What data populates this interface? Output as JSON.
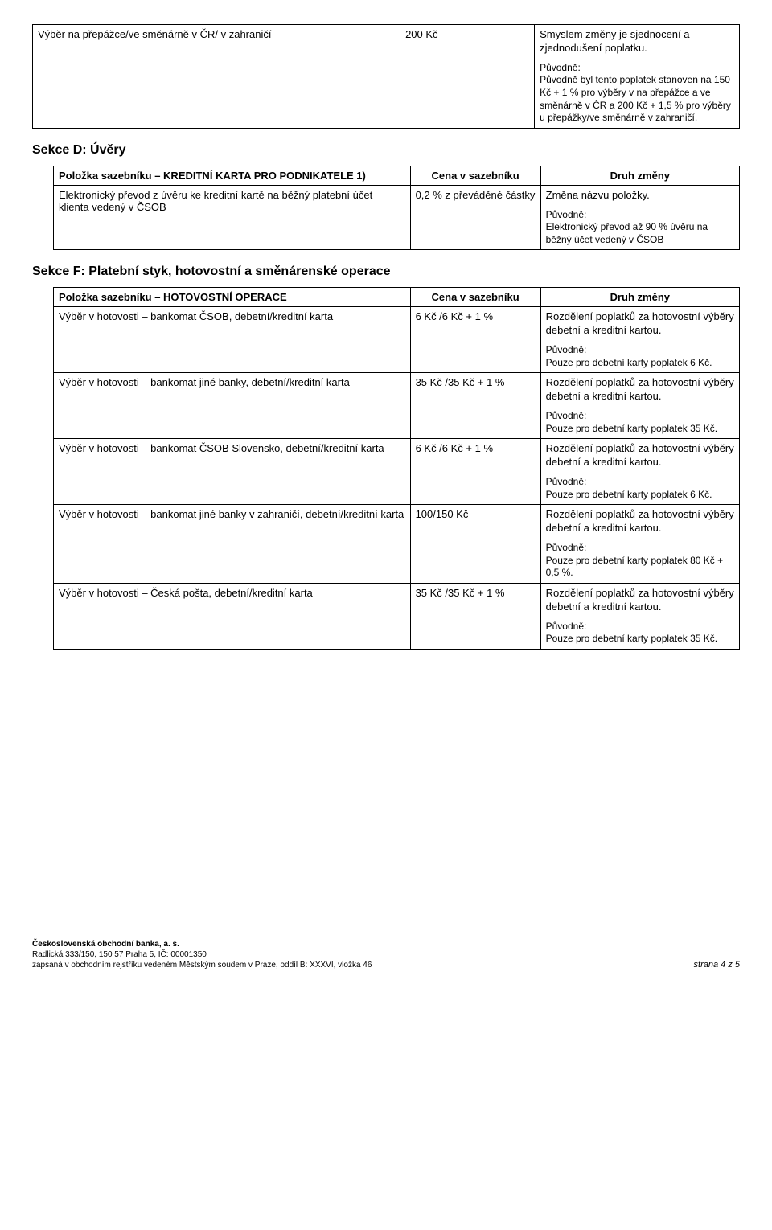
{
  "topTable": {
    "row": {
      "col1": "Výběr na přepážce/ve směnárně v ČR/ v zahraničí",
      "col2": "200 Kč",
      "lead": "Smyslem změny je sjednocení a zjednodušení poplatku.",
      "puvLabel": "Původně:",
      "puvText": "Původně byl tento poplatek stanoven na 150 Kč + 1 % pro výběry v na přepážce a ve směnárně v ČR a 200 Kč + 1,5 % pro výběry u přepážky/ve směnárně v zahraničí."
    }
  },
  "sectionD": {
    "heading": "Sekce D: Úvěry",
    "headerCol1": "Položka sazebníku – KREDITNÍ KARTA PRO PODNIKATELE 1)",
    "headerCol2": "Cena v sazebníku",
    "headerCol3": "Druh změny",
    "row": {
      "col1": "Elektronický převod z úvěru ke kreditní kartě na běžný platební účet klienta vedený v ČSOB",
      "col2": "0,2 % z převáděné částky",
      "lead": "Změna názvu položky.",
      "puvLabel": "Původně:",
      "puvText": "Elektronický převod až 90 % úvěru na běžný účet vedený v ČSOB"
    }
  },
  "sectionF": {
    "heading": "Sekce F: Platební styk, hotovostní a směnárenské operace",
    "headerCol1": "Položka sazebníku – HOTOVOSTNÍ OPERACE",
    "headerCol2": "Cena v sazebníku",
    "headerCol3": "Druh změny",
    "rows": [
      {
        "col1": "Výběr v hotovosti – bankomat ČSOB, debetní/kreditní karta",
        "col2": "6 Kč /6 Kč + 1 %",
        "lead": "Rozdělení poplatků za hotovostní výběry debetní a kreditní kartou.",
        "puvLabel": "Původně:",
        "puvText": "Pouze pro debetní karty poplatek 6 Kč."
      },
      {
        "col1": "Výběr v hotovosti – bankomat jiné banky, debetní/kreditní karta",
        "col2": "35 Kč /35 Kč + 1 %",
        "lead": "Rozdělení poplatků za hotovostní výběry debetní a kreditní kartou.",
        "puvLabel": "Původně:",
        "puvText": "Pouze pro debetní karty poplatek 35 Kč."
      },
      {
        "col1": "Výběr v hotovosti – bankomat ČSOB Slovensko, debetní/kreditní karta",
        "col2": "6 Kč /6 Kč + 1 %",
        "lead": "Rozdělení poplatků za hotovostní výběry debetní a kreditní kartou.",
        "puvLabel": "Původně:",
        "puvText": "Pouze pro debetní karty poplatek 6 Kč."
      },
      {
        "col1": "Výběr v hotovosti – bankomat jiné banky v zahraničí, debetní/kreditní karta",
        "col2": "100/150 Kč",
        "lead": "Rozdělení poplatků za hotovostní výběry debetní a kreditní kartou.",
        "puvLabel": "Původně:",
        "puvText": "Pouze pro debetní karty poplatek 80 Kč + 0,5 %."
      },
      {
        "col1": "Výběr v hotovosti – Česká pošta, debetní/kreditní karta",
        "col2": "35 Kč /35 Kč + 1 %",
        "lead": "Rozdělení poplatků za hotovostní výběry debetní a kreditní kartou.",
        "puvLabel": "Původně:",
        "puvText": "Pouze pro debetní karty poplatek 35 Kč."
      }
    ]
  },
  "footer": {
    "line1": "Československá obchodní banka, a. s.",
    "line2": "Radlická 333/150, 150 57 Praha 5, IČ: 00001350",
    "line3": "zapsaná v obchodním rejstříku vedeném Městským soudem v Praze, oddíl B: XXXVI, vložka 46",
    "page": "strana 4 z 5"
  }
}
